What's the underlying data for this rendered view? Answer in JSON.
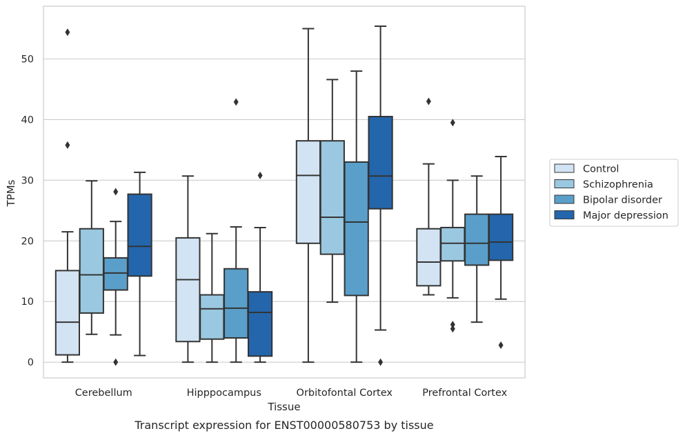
{
  "chart_data": {
    "type": "box",
    "title": "",
    "caption": "Transcript expression for ENST00000580753 by tissue",
    "xlabel": "Tissue",
    "ylabel": "TPMs",
    "ylim": [
      -2.6,
      58.7
    ],
    "yticks": [
      0,
      10,
      20,
      30,
      40,
      50
    ],
    "grid": "horizontal",
    "legend_position": "outside-right",
    "categories": [
      "Cerebellum",
      "Hipppocampus",
      "Orbitofontal Cortex",
      "Prefrontal Cortex"
    ],
    "series": [
      {
        "name": "Control",
        "color": "#d2e3f3",
        "boxes": [
          {
            "whisker_low": 0,
            "q1": 1.2,
            "median": 6.6,
            "q3": 15.1,
            "whisker_high": 21.5,
            "outliers": [
              35.8,
              54.4
            ]
          },
          {
            "whisker_low": 0,
            "q1": 3.4,
            "median": 13.6,
            "q3": 20.5,
            "whisker_high": 30.7,
            "outliers": []
          },
          {
            "whisker_low": 0,
            "q1": 19.6,
            "median": 30.8,
            "q3": 36.5,
            "whisker_high": 55.0,
            "outliers": []
          },
          {
            "whisker_low": 11.1,
            "q1": 12.6,
            "median": 16.5,
            "q3": 22.0,
            "whisker_high": 32.7,
            "outliers": [
              43.0
            ]
          }
        ]
      },
      {
        "name": "Schizophrenia",
        "color": "#9ac8e0",
        "boxes": [
          {
            "whisker_low": 4.6,
            "q1": 8.1,
            "median": 14.4,
            "q3": 22.0,
            "whisker_high": 29.9,
            "outliers": []
          },
          {
            "whisker_low": 0,
            "q1": 3.8,
            "median": 8.8,
            "q3": 11.1,
            "whisker_high": 21.2,
            "outliers": []
          },
          {
            "whisker_low": 9.9,
            "q1": 17.8,
            "median": 23.9,
            "q3": 36.5,
            "whisker_high": 46.6,
            "outliers": []
          },
          {
            "whisker_low": 10.6,
            "q1": 16.7,
            "median": 19.6,
            "q3": 22.2,
            "whisker_high": 30.0,
            "outliers": [
              5.5,
              6.2,
              39.5
            ]
          }
        ]
      },
      {
        "name": "Bipolar disorder",
        "color": "#5a9fc9",
        "boxes": [
          {
            "whisker_low": 4.5,
            "q1": 11.9,
            "median": 14.7,
            "q3": 17.2,
            "whisker_high": 23.2,
            "outliers": [
              0,
              28.1
            ]
          },
          {
            "whisker_low": 0,
            "q1": 4.0,
            "median": 8.9,
            "q3": 15.4,
            "whisker_high": 22.3,
            "outliers": [
              42.9
            ]
          },
          {
            "whisker_low": 0,
            "q1": 11.0,
            "median": 23.1,
            "q3": 33.0,
            "whisker_high": 48.0,
            "outliers": []
          },
          {
            "whisker_low": 6.6,
            "q1": 16.0,
            "median": 19.6,
            "q3": 24.4,
            "whisker_high": 30.7,
            "outliers": []
          }
        ]
      },
      {
        "name": "Major depression",
        "color": "#2366ac",
        "boxes": [
          {
            "whisker_low": 1.1,
            "q1": 14.2,
            "median": 19.1,
            "q3": 27.7,
            "whisker_high": 31.3,
            "outliers": []
          },
          {
            "whisker_low": 0,
            "q1": 1.0,
            "median": 8.2,
            "q3": 11.6,
            "whisker_high": 22.2,
            "outliers": [
              30.8
            ]
          },
          {
            "whisker_low": 5.3,
            "q1": 25.3,
            "median": 30.7,
            "q3": 40.5,
            "whisker_high": 55.4,
            "outliers": [
              0
            ]
          },
          {
            "whisker_low": 10.4,
            "q1": 16.8,
            "median": 19.8,
            "q3": 24.4,
            "whisker_high": 33.9,
            "outliers": [
              2.8
            ]
          }
        ]
      }
    ]
  }
}
